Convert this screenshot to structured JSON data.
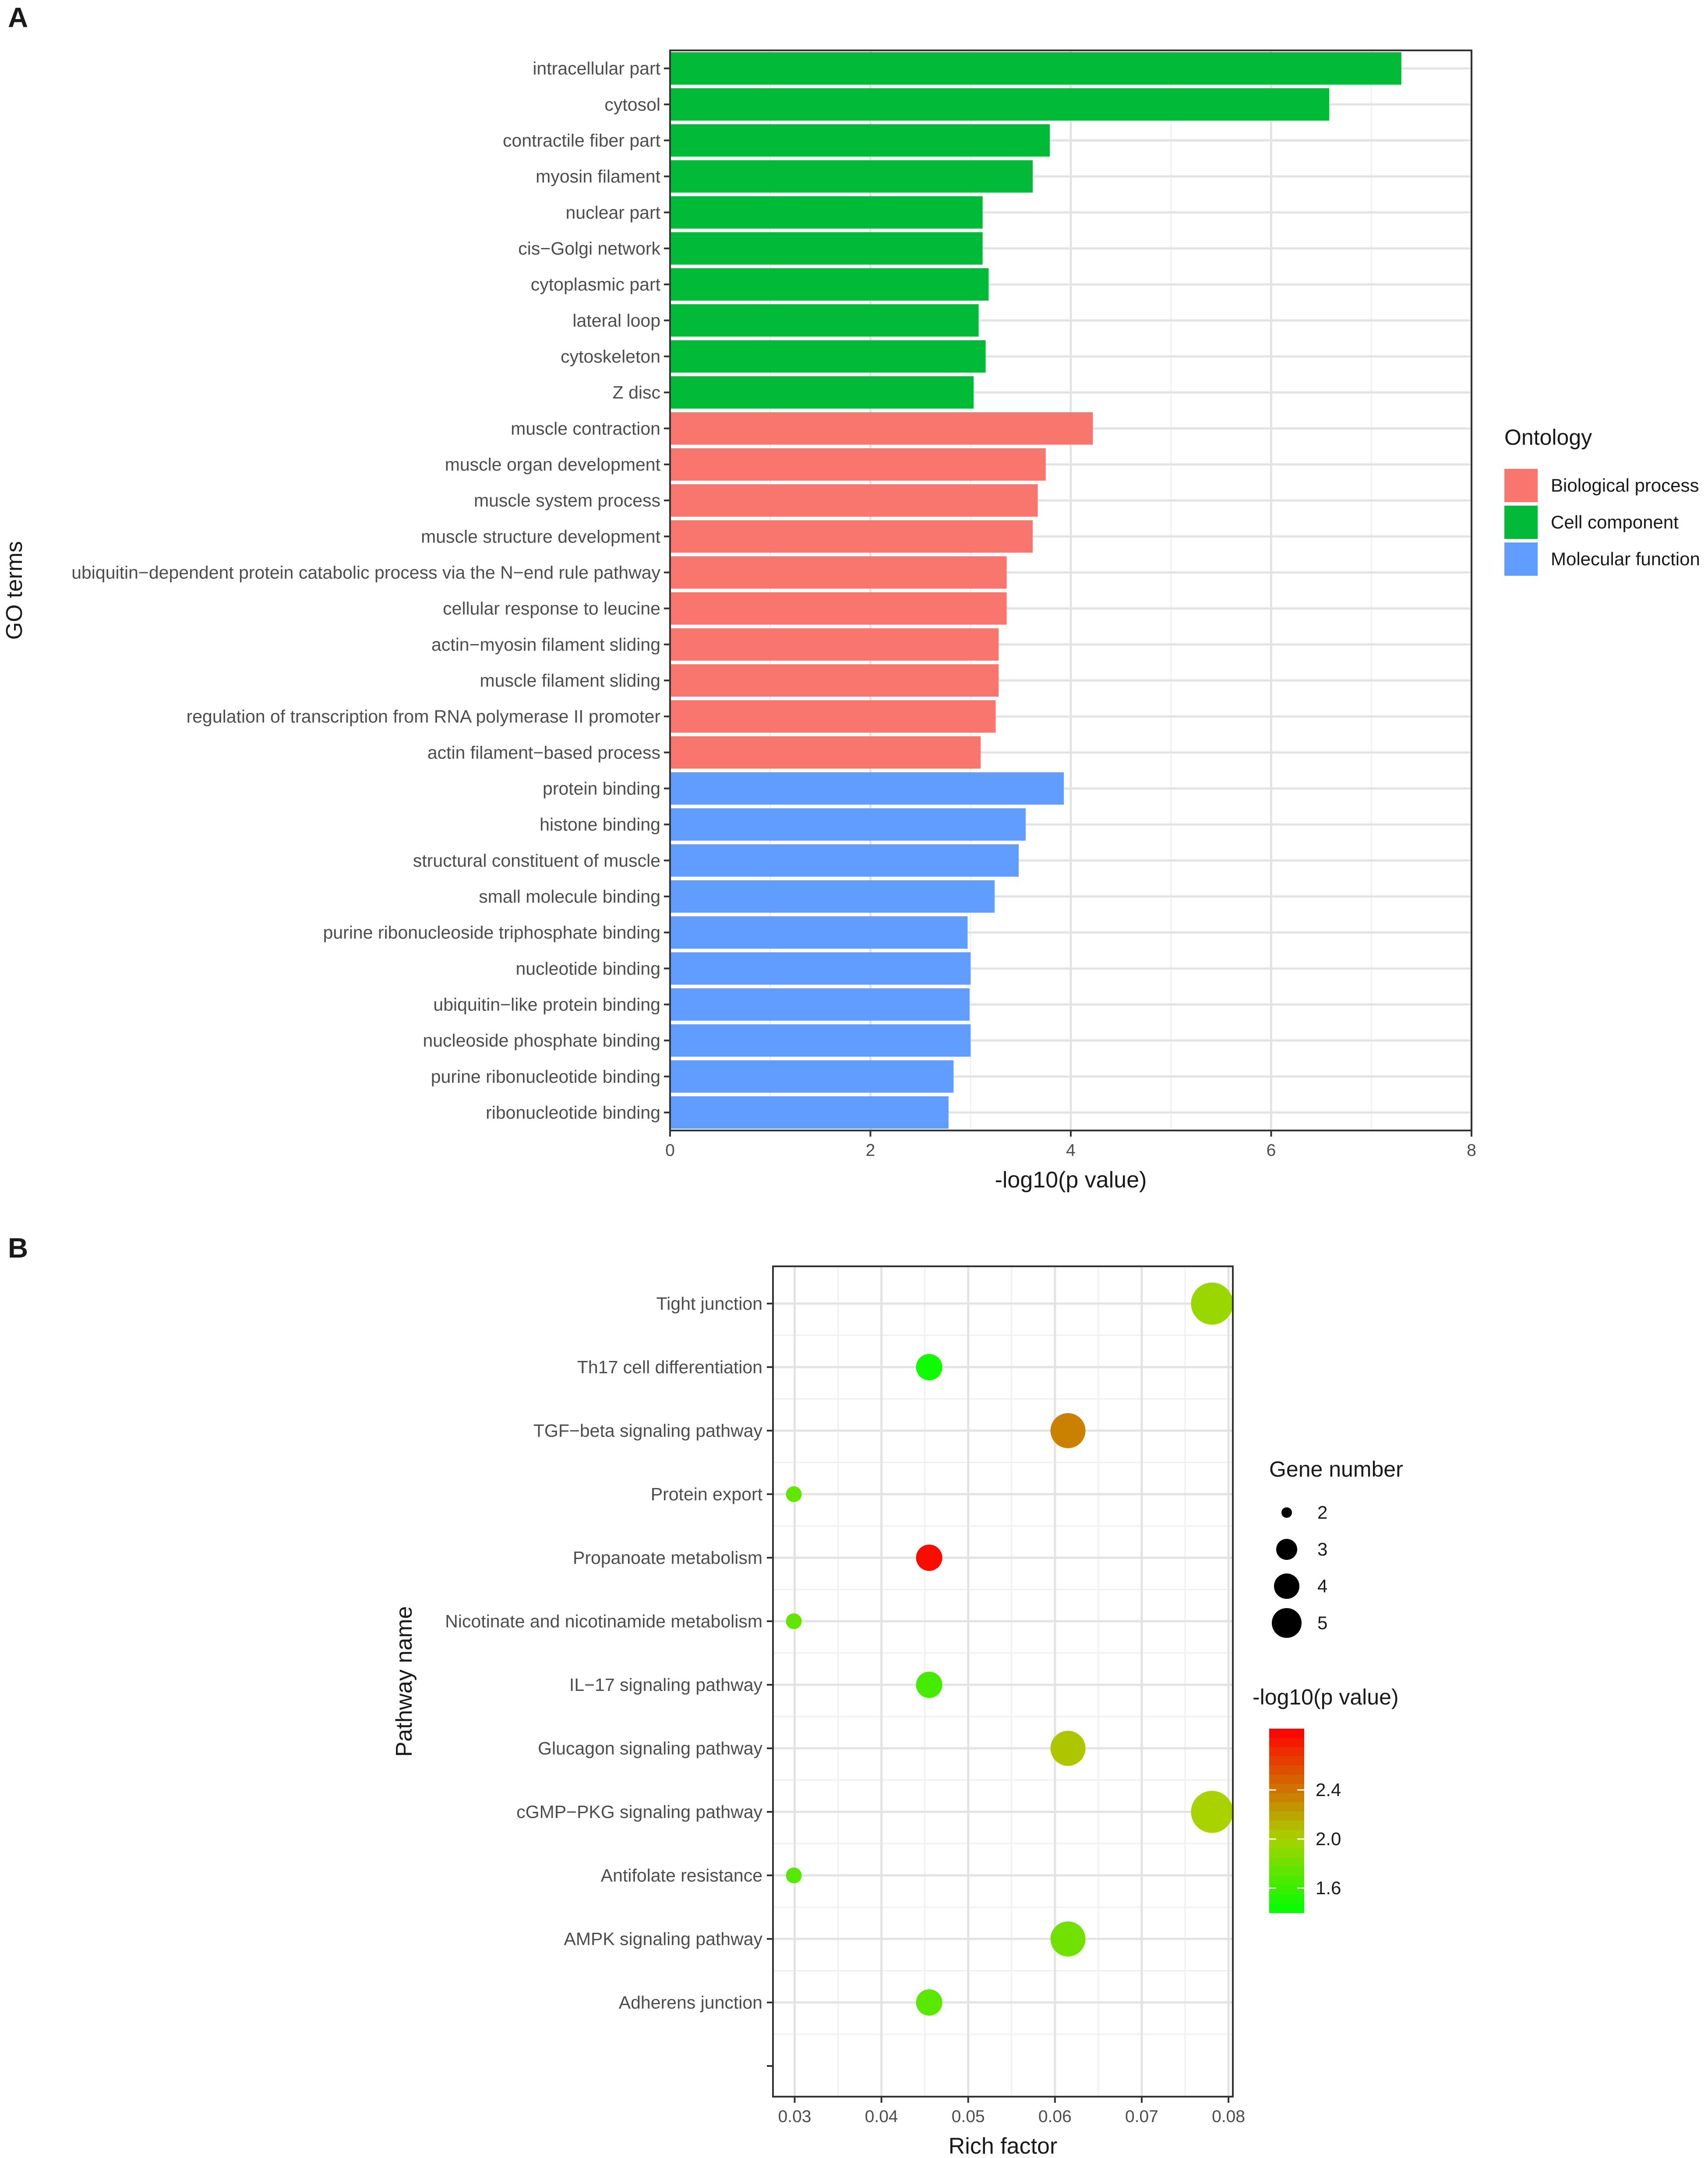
{
  "panel_a_label": "A",
  "panel_b_label": "B",
  "chart_data": [
    {
      "type": "bar",
      "orientation": "horizontal",
      "title": "",
      "xlabel": "-log10(p value)",
      "ylabel": "GO terms",
      "xlim": [
        0,
        8
      ],
      "xticks": [
        0,
        2,
        4,
        6,
        8
      ],
      "grid": true,
      "legend_title": "Ontology",
      "legend_position": "right",
      "legend": [
        {
          "name": "Biological process",
          "color": "#F8766D"
        },
        {
          "name": "Cell component",
          "color": "#00BA38"
        },
        {
          "name": "Molecular function",
          "color": "#619CFF"
        }
      ],
      "categories": [
        "intracellular part",
        "cytosol",
        "contractile fiber part",
        "myosin filament",
        "nuclear part",
        "cis−Golgi network",
        "cytoplasmic part",
        "lateral loop",
        "cytoskeleton",
        "Z disc",
        "muscle contraction",
        "muscle organ development",
        "muscle system process",
        "muscle structure development",
        "ubiquitin−dependent protein catabolic process via the N−end rule pathway",
        "cellular response to leucine",
        "actin−myosin filament sliding",
        "muscle filament sliding",
        "regulation of transcription from RNA polymerase II promoter",
        "actin filament−based process",
        "protein binding",
        "histone binding",
        "structural constituent of muscle",
        "small molecule binding",
        "purine ribonucleoside triphosphate binding",
        "nucleotide binding",
        "ubiquitin−like protein binding",
        "nucleoside phosphate binding",
        "purine ribonucleotide binding",
        "ribonucleotide binding"
      ],
      "values": [
        7.3,
        6.58,
        3.79,
        3.62,
        3.12,
        3.12,
        3.18,
        3.08,
        3.15,
        3.03,
        4.22,
        3.75,
        3.67,
        3.62,
        3.36,
        3.36,
        3.28,
        3.28,
        3.25,
        3.1,
        3.93,
        3.55,
        3.48,
        3.24,
        2.97,
        3.0,
        2.99,
        3.0,
        2.83,
        2.78
      ],
      "groups": [
        "Cell component",
        "Cell component",
        "Cell component",
        "Cell component",
        "Cell component",
        "Cell component",
        "Cell component",
        "Cell component",
        "Cell component",
        "Cell component",
        "Biological process",
        "Biological process",
        "Biological process",
        "Biological process",
        "Biological process",
        "Biological process",
        "Biological process",
        "Biological process",
        "Biological process",
        "Biological process",
        "Molecular function",
        "Molecular function",
        "Molecular function",
        "Molecular function",
        "Molecular function",
        "Molecular function",
        "Molecular function",
        "Molecular function",
        "Molecular function",
        "Molecular function"
      ]
    },
    {
      "type": "scatter",
      "title": "",
      "xlabel": "Rich factor",
      "ylabel": "Pathway name",
      "xlim": [
        0.0275,
        0.0805
      ],
      "xticks": [
        0.03,
        0.04,
        0.05,
        0.06,
        0.07,
        0.08
      ],
      "xtick_labels": [
        "0.03",
        "0.04",
        "0.05",
        "0.06",
        "0.07",
        "0.08"
      ],
      "grid": true,
      "categories": [
        "Tight junction",
        "Th17 cell differentiation",
        "TGF−beta signaling pathway",
        "Protein export",
        "Propanoate metabolism",
        "Nicotinate and nicotinamide metabolism",
        "IL−17 signaling pathway",
        "Glucagon signaling pathway",
        "cGMP−PKG signaling pathway",
        "Antifolate resistance",
        "AMPK signaling pathway",
        "Adherens junction"
      ],
      "x": [
        0.0781,
        0.0455,
        0.0615,
        0.0299,
        0.0455,
        0.0299,
        0.0455,
        0.0615,
        0.0781,
        0.0299,
        0.0615,
        0.0455
      ],
      "gene_number": [
        5,
        3,
        4,
        2,
        3,
        2,
        3,
        4,
        5,
        2,
        4,
        3
      ],
      "neg_log10_p": [
        1.95,
        1.45,
        2.35,
        1.75,
        2.85,
        1.75,
        1.65,
        2.05,
        2.0,
        1.7,
        1.8,
        1.72
      ],
      "size_legend_title": "Gene number",
      "size_legend_values": [
        2,
        3,
        4,
        5
      ],
      "color_legend_title": "-log10(p value)",
      "color_range": [
        1.4,
        2.9
      ],
      "color_ticks": [
        2.4,
        2.0,
        1.6
      ],
      "color_tick_labels": [
        "2.4",
        "2.0",
        "1.6"
      ],
      "color_low": "#00FF00",
      "color_mid": "#A8D200",
      "color_high": "#FF0000"
    }
  ]
}
